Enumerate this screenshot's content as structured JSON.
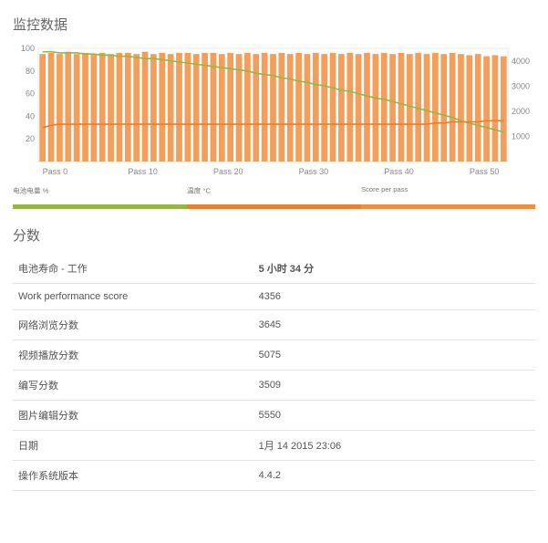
{
  "titles": {
    "monitor": "监控数据",
    "scores": "分数"
  },
  "chart": {
    "type": "bar+line",
    "background_color": "#ffffff",
    "plot_border_color": "#e8e8e8",
    "bar_color": "#f18e3e",
    "line_green_color": "#93b846",
    "line_orange_color": "#eb7f2e",
    "y_left": {
      "min": 0,
      "max": 100,
      "ticks": [
        20,
        40,
        60,
        80,
        100
      ]
    },
    "y_right": {
      "min": 0,
      "max": 4500,
      "ticks": [
        1000,
        2000,
        3000,
        4000
      ]
    },
    "x_labels": [
      "Pass 0",
      "Pass 10",
      "Pass 20",
      "Pass 30",
      "Pass 40",
      "Pass 50"
    ],
    "bars": [
      95,
      96,
      95,
      97,
      95,
      96,
      95,
      96,
      95,
      96,
      96,
      95,
      97,
      95,
      96,
      95,
      96,
      96,
      95,
      96,
      96,
      95,
      96,
      95,
      96,
      95,
      96,
      95,
      96,
      95,
      96,
      95,
      96,
      95,
      96,
      95,
      96,
      95,
      96,
      95,
      96,
      95,
      96,
      95,
      96,
      95,
      96,
      95,
      96,
      95,
      94,
      95,
      93,
      94,
      93
    ],
    "green_line": [
      97,
      97,
      96,
      96,
      96,
      95,
      95,
      94,
      94,
      93,
      93,
      92,
      91,
      91,
      90,
      89,
      88,
      87,
      86,
      85,
      84,
      83,
      82,
      81,
      80,
      78,
      77,
      76,
      74,
      73,
      71,
      70,
      68,
      67,
      65,
      63,
      62,
      60,
      58,
      56,
      55,
      53,
      51,
      49,
      47,
      45,
      43,
      41,
      39,
      36,
      34,
      32,
      30,
      28,
      26
    ],
    "orange_line": [
      30,
      32,
      33,
      33,
      33,
      33,
      33,
      33,
      33,
      33,
      33,
      33,
      33,
      33,
      33,
      33,
      33,
      33,
      33,
      33,
      33,
      33,
      33,
      33,
      33,
      33,
      33,
      33,
      33,
      33,
      33,
      33,
      33,
      33,
      33,
      33,
      33,
      33,
      33,
      33,
      33,
      33,
      33,
      33,
      33,
      33,
      34,
      34,
      35,
      35,
      35,
      35,
      36,
      36,
      36
    ]
  },
  "legend": {
    "items": [
      {
        "label": "电池电量 %",
        "color": "#93b846"
      },
      {
        "label": "温度 °C",
        "color": "#eb7f2e"
      },
      {
        "label": "Score per pass",
        "color": "#f18e3e"
      }
    ]
  },
  "scores": {
    "rows": [
      {
        "label": "电池寿命 - 工作",
        "value": "5 小时 34 分",
        "highlight": true
      },
      {
        "label": "Work performance score",
        "value": "4356"
      },
      {
        "label": "网络浏览分数",
        "value": "3645"
      },
      {
        "label": "视频播放分数",
        "value": "5075"
      },
      {
        "label": "编写分数",
        "value": "3509"
      },
      {
        "label": "图片编辑分数",
        "value": "5550"
      },
      {
        "label": "日期",
        "value": "1月 14 2015 23:06"
      },
      {
        "label": "操作系统版本",
        "value": "4.4.2"
      }
    ]
  }
}
